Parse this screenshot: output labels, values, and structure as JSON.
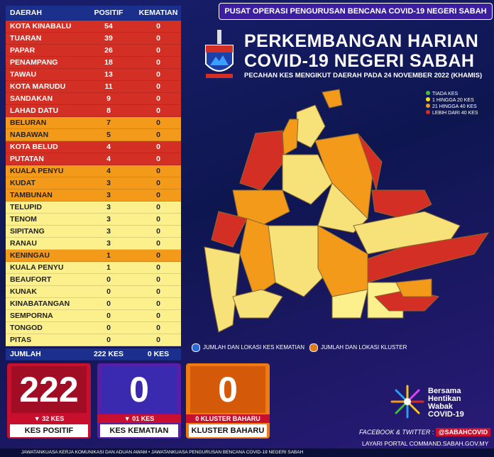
{
  "header": {
    "banner": "PUSAT OPERASI PENGURUSAN BENCANA COVID-19 NEGERI SABAH",
    "title_line1": "PERKEMBANGAN HARIAN",
    "title_line2": "COVID-19 NEGERI SABAH",
    "subtitle": "PECAHAN KES MENGIKUT DAERAH PADA 24 NOVEMBER 2022 (KHAMIS)"
  },
  "table": {
    "columns": [
      "DAERAH",
      "POSITIF",
      "KEMATIAN"
    ],
    "rows": [
      [
        "KOTA KINABALU",
        54,
        0,
        "red"
      ],
      [
        "TUARAN",
        39,
        0,
        "red"
      ],
      [
        "PAPAR",
        26,
        0,
        "red"
      ],
      [
        "PENAMPANG",
        18,
        0,
        "red"
      ],
      [
        "TAWAU",
        13,
        0,
        "red"
      ],
      [
        "KOTA MARUDU",
        11,
        0,
        "red"
      ],
      [
        "SANDAKAN",
        9,
        0,
        "red"
      ],
      [
        "LAHAD DATU",
        8,
        0,
        "red"
      ],
      [
        "BELURAN",
        7,
        0,
        "orange"
      ],
      [
        "NABAWAN",
        5,
        0,
        "orange"
      ],
      [
        "KOTA BELUD",
        4,
        0,
        "red"
      ],
      [
        "PUTATAN",
        4,
        0,
        "red"
      ],
      [
        "KUALA PENYU",
        4,
        0,
        "orange"
      ],
      [
        "KUDAT",
        3,
        0,
        "orange"
      ],
      [
        "TAMBUNAN",
        3,
        0,
        "orange"
      ],
      [
        "TELUPID",
        3,
        0,
        "yellow"
      ],
      [
        "TENOM",
        3,
        0,
        "yellow"
      ],
      [
        "SIPITANG",
        3,
        0,
        "yellow"
      ],
      [
        "RANAU",
        3,
        0,
        "yellow"
      ],
      [
        "KENINGAU",
        1,
        0,
        "orange"
      ],
      [
        "KUALA PENYU",
        1,
        0,
        "yellow"
      ],
      [
        "BEAUFORT",
        0,
        0,
        "yellow"
      ],
      [
        "KUNAK",
        0,
        0,
        "yellow"
      ],
      [
        "KINABATANGAN",
        0,
        0,
        "yellow"
      ],
      [
        "SEMPORNA",
        0,
        0,
        "yellow"
      ],
      [
        "TONGOD",
        0,
        0,
        "yellow"
      ],
      [
        "PITAS",
        0,
        0,
        "yellow"
      ]
    ],
    "total": [
      "JUMLAH",
      "222  KES",
      "0 KES"
    ]
  },
  "map_legend": [
    "TIADA KES",
    "1 HINGGA 20 KES",
    "21 HINGGA 40 KES",
    "LEBIH DARI 40 KES"
  ],
  "map_markers": [
    "JUMLAH DAN LOKASI KES KEMATIAN",
    "JUMLAH DAN LOKASI KLUSTER"
  ],
  "summary": [
    {
      "number": "222",
      "change": "▼  32 KES",
      "label": "KES POSITIF"
    },
    {
      "number": "0",
      "change": "▼  01 KES",
      "label": "KES KEMATIAN"
    },
    {
      "number": "0",
      "change": "0 KLUSTER BAHARU",
      "label": "KLUSTER BAHARU"
    }
  ],
  "campaign": [
    "Bersama",
    "Hentikan",
    "Wabak",
    "COVID-19"
  ],
  "social": {
    "label": "FACEBOOK & TWITTER",
    "handle": "@SABAHCOVID",
    "portal_label": "LAYARI PORTAL",
    "portal": "COMMAND.SABAH.GOV.MY"
  },
  "footer": "JAWATANKUASA KERJA KOMUNIKASI DAN ADUAN AWAM • JAWATANKUASA PENGURUSAN BENCANA COVID-19 NEGERI SABAH"
}
